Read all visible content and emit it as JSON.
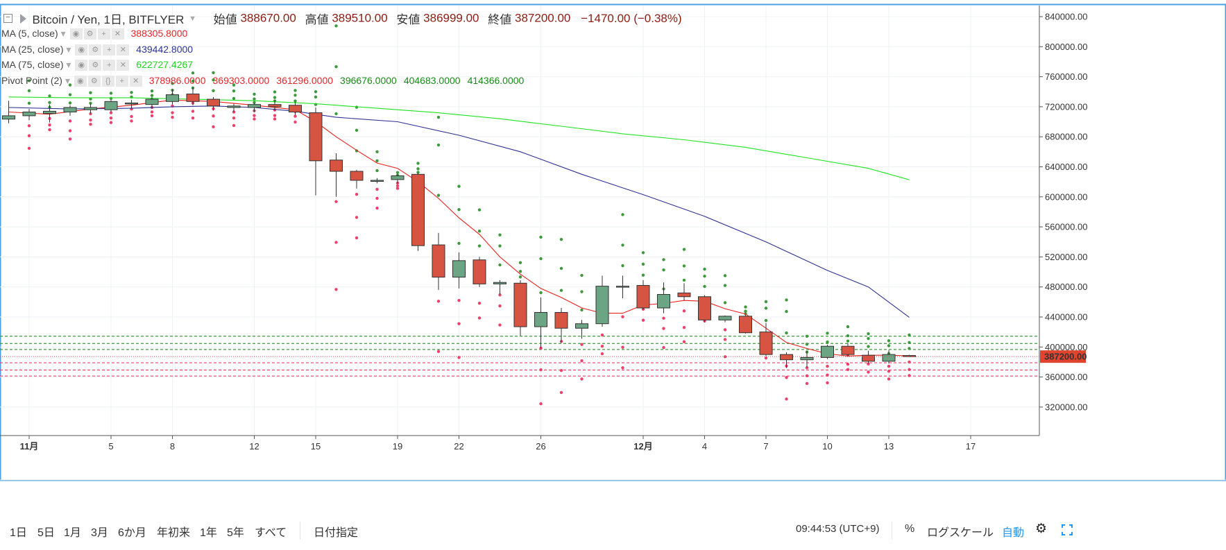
{
  "header": {
    "symbol": "Bitcoin / Yen, 1日, BITFLYER",
    "open_label": "始値",
    "open": "388670.00",
    "high_label": "高値",
    "high": "389510.00",
    "low_label": "安値",
    "low": "386999.00",
    "close_label": "終値",
    "close": "387200.00",
    "change": "−1470.00 (−0.38%)"
  },
  "indicators": [
    {
      "name": "MA (5, close)",
      "values": [
        "388305.8000"
      ],
      "colors": [
        "#e0262b"
      ]
    },
    {
      "name": "MA (25, close)",
      "values": [
        "439442.8000"
      ],
      "colors": [
        "#2d3498"
      ]
    },
    {
      "name": "MA (75, close)",
      "values": [
        "622727.4267"
      ],
      "colors": [
        "#21d521"
      ]
    },
    {
      "name": "Pivot Point (2)",
      "values": [
        "378986.0000",
        "369303.0000",
        "361296.0000",
        "396676.0000",
        "404683.0000",
        "414366.0000"
      ],
      "colors": [
        "#e0262b",
        "#e0262b",
        "#e0262b",
        "#178a17",
        "#178a17",
        "#178a17"
      ]
    }
  ],
  "toolbar": {
    "ranges": [
      "1日",
      "5日",
      "1月",
      "3月",
      "6か月",
      "年初来",
      "1年",
      "5年",
      "すべて"
    ],
    "date_goto": "日付指定",
    "clock": "09:44:53 (UTC+9)",
    "percent": "%",
    "log_scale": "ログスケール",
    "auto": "自動"
  },
  "colors": {
    "up": "#6ba583",
    "down": "#d75442",
    "ma5": "#e8201a",
    "ma25": "#2e3192",
    "ma75": "#1ee31e",
    "pivot_support": "#ef3f6b",
    "pivot_resistance": "#3c9a3c",
    "last_price_bg": "#e0442f"
  },
  "chart_data": {
    "type": "candlestick",
    "y_axis": {
      "ticks": [
        "840000.00",
        "800000.00",
        "760000.00",
        "720000.00",
        "680000.00",
        "640000.00",
        "600000.00",
        "560000.00",
        "520000.00",
        "480000.00",
        "440000.00",
        "400000.00",
        "360000.00",
        "320000.00"
      ],
      "last_price_label": "387200.00",
      "side": "right"
    },
    "x_axis": {
      "tick_labels": [
        {
          "label": "11月",
          "day": 1
        },
        {
          "label": "5",
          "day": 5
        },
        {
          "label": "8",
          "day": 8
        },
        {
          "label": "12",
          "day": 12
        },
        {
          "label": "15",
          "day": 15
        },
        {
          "label": "19",
          "day": 19
        },
        {
          "label": "22",
          "day": 22
        },
        {
          "label": "26",
          "day": 26
        },
        {
          "label": "12月",
          "day": 31
        },
        {
          "label": "4",
          "day": 34
        },
        {
          "label": "7",
          "day": 37
        },
        {
          "label": "10",
          "day": 40
        },
        {
          "label": "13",
          "day": 43
        },
        {
          "label": "17",
          "day": 47
        }
      ]
    },
    "candles": [
      {
        "day": 0,
        "o": 703500,
        "h": 728000,
        "l": 698000,
        "c": 708000
      },
      {
        "day": 1,
        "o": 708000,
        "h": 717000,
        "l": 702000,
        "c": 713000
      },
      {
        "day": 2,
        "o": 711000,
        "h": 723000,
        "l": 699000,
        "c": 714000
      },
      {
        "day": 3,
        "o": 713000,
        "h": 722000,
        "l": 708000,
        "c": 719000
      },
      {
        "day": 4,
        "o": 716000,
        "h": 724000,
        "l": 711000,
        "c": 719000
      },
      {
        "day": 5,
        "o": 716000,
        "h": 729000,
        "l": 713000,
        "c": 727000
      },
      {
        "day": 6,
        "o": 724000,
        "h": 729000,
        "l": 718000,
        "c": 725000
      },
      {
        "day": 7,
        "o": 723000,
        "h": 733000,
        "l": 718000,
        "c": 730000
      },
      {
        "day": 8,
        "o": 727000,
        "h": 743000,
        "l": 723000,
        "c": 736000
      },
      {
        "day": 9,
        "o": 737000,
        "h": 746000,
        "l": 722000,
        "c": 727000
      },
      {
        "day": 10,
        "o": 730000,
        "h": 733000,
        "l": 715000,
        "c": 721000
      },
      {
        "day": 11,
        "o": 719000,
        "h": 724000,
        "l": 713000,
        "c": 721000
      },
      {
        "day": 12,
        "o": 719000,
        "h": 725000,
        "l": 713000,
        "c": 723000
      },
      {
        "day": 13,
        "o": 723000,
        "h": 729000,
        "l": 715000,
        "c": 720000
      },
      {
        "day": 14,
        "o": 722000,
        "h": 726000,
        "l": 709000,
        "c": 713000
      },
      {
        "day": 15,
        "o": 712000,
        "h": 719000,
        "l": 602000,
        "c": 648000
      },
      {
        "day": 16,
        "o": 649000,
        "h": 658000,
        "l": 600000,
        "c": 634000
      },
      {
        "day": 17,
        "o": 634000,
        "h": 636000,
        "l": 611000,
        "c": 622000
      },
      {
        "day": 18,
        "o": 622000,
        "h": 625000,
        "l": 618000,
        "c": 622000
      },
      {
        "day": 19,
        "o": 623000,
        "h": 630000,
        "l": 618000,
        "c": 628000
      },
      {
        "day": 20,
        "o": 630000,
        "h": 632000,
        "l": 528000,
        "c": 535000
      },
      {
        "day": 21,
        "o": 536000,
        "h": 552000,
        "l": 476000,
        "c": 493000
      },
      {
        "day": 22,
        "o": 493000,
        "h": 526000,
        "l": 478000,
        "c": 515000
      },
      {
        "day": 23,
        "o": 516000,
        "h": 520000,
        "l": 480000,
        "c": 484000
      },
      {
        "day": 24,
        "o": 484000,
        "h": 489000,
        "l": 470000,
        "c": 486000
      },
      {
        "day": 25,
        "o": 485000,
        "h": 489000,
        "l": 415000,
        "c": 427000
      },
      {
        "day": 26,
        "o": 427000,
        "h": 466000,
        "l": 398000,
        "c": 446000
      },
      {
        "day": 27,
        "o": 446000,
        "h": 452000,
        "l": 406000,
        "c": 425000
      },
      {
        "day": 28,
        "o": 425000,
        "h": 436000,
        "l": 411000,
        "c": 431000
      },
      {
        "day": 29,
        "o": 431000,
        "h": 495000,
        "l": 427000,
        "c": 481000
      },
      {
        "day": 30,
        "o": 481000,
        "h": 495000,
        "l": 465000,
        "c": 481000
      },
      {
        "day": 31,
        "o": 482000,
        "h": 489000,
        "l": 450000,
        "c": 452000
      },
      {
        "day": 32,
        "o": 452000,
        "h": 486000,
        "l": 445000,
        "c": 470000
      },
      {
        "day": 33,
        "o": 472000,
        "h": 485000,
        "l": 462000,
        "c": 467000
      },
      {
        "day": 34,
        "o": 467000,
        "h": 469000,
        "l": 433000,
        "c": 436000
      },
      {
        "day": 35,
        "o": 436000,
        "h": 442000,
        "l": 433000,
        "c": 441000
      },
      {
        "day": 36,
        "o": 441000,
        "h": 443000,
        "l": 418000,
        "c": 419000
      },
      {
        "day": 37,
        "o": 420000,
        "h": 432000,
        "l": 388000,
        "c": 390000
      },
      {
        "day": 38,
        "o": 390000,
        "h": 393000,
        "l": 372000,
        "c": 383000
      },
      {
        "day": 39,
        "o": 383000,
        "h": 395000,
        "l": 373000,
        "c": 386000
      },
      {
        "day": 40,
        "o": 386000,
        "h": 403000,
        "l": 384000,
        "c": 401000
      },
      {
        "day": 41,
        "o": 401000,
        "h": 405000,
        "l": 388000,
        "c": 390000
      },
      {
        "day": 42,
        "o": 389000,
        "h": 395000,
        "l": 378000,
        "c": 381000
      },
      {
        "day": 43,
        "o": 381000,
        "h": 396000,
        "l": 378000,
        "c": 390000
      },
      {
        "day": 44,
        "o": 388670,
        "h": 389510,
        "l": 386999,
        "c": 387200
      }
    ],
    "series": [
      {
        "name": "MA (5, close)",
        "points": [
          [
            0,
            713000
          ],
          [
            2,
            710000
          ],
          [
            4,
            717000
          ],
          [
            6,
            722000
          ],
          [
            8,
            729000
          ],
          [
            10,
            727000
          ],
          [
            12,
            722000
          ],
          [
            14,
            716000
          ],
          [
            15,
            700000
          ],
          [
            16,
            680000
          ],
          [
            17,
            662000
          ],
          [
            18,
            645000
          ],
          [
            19,
            638000
          ],
          [
            20,
            620000
          ],
          [
            21,
            598000
          ],
          [
            22,
            572000
          ],
          [
            23,
            550000
          ],
          [
            24,
            520000
          ],
          [
            25,
            497000
          ],
          [
            26,
            478000
          ],
          [
            27,
            466000
          ],
          [
            28,
            452000
          ],
          [
            29,
            445000
          ],
          [
            30,
            445000
          ],
          [
            31,
            456000
          ],
          [
            32,
            458000
          ],
          [
            33,
            462000
          ],
          [
            34,
            461000
          ],
          [
            35,
            451000
          ],
          [
            36,
            444000
          ],
          [
            37,
            425000
          ],
          [
            38,
            406000
          ],
          [
            39,
            398000
          ],
          [
            40,
            391000
          ],
          [
            41,
            388000
          ],
          [
            42,
            389000
          ],
          [
            43,
            389000
          ],
          [
            44,
            388306
          ]
        ]
      },
      {
        "name": "MA (25, close)",
        "points": [
          [
            0,
            719000
          ],
          [
            3,
            717000
          ],
          [
            6,
            718000
          ],
          [
            8,
            720000
          ],
          [
            10,
            721000
          ],
          [
            12,
            719000
          ],
          [
            14,
            714000
          ],
          [
            16,
            706000
          ],
          [
            19,
            700000
          ],
          [
            22,
            682000
          ],
          [
            25,
            660000
          ],
          [
            28,
            630000
          ],
          [
            31,
            603000
          ],
          [
            34,
            574000
          ],
          [
            37,
            540000
          ],
          [
            40,
            502000
          ],
          [
            42,
            480000
          ],
          [
            44,
            439443
          ]
        ]
      },
      {
        "name": "MA (75, close)",
        "points": [
          [
            0,
            733000
          ],
          [
            3,
            732000
          ],
          [
            6,
            732000
          ],
          [
            9,
            730000
          ],
          [
            12,
            728000
          ],
          [
            15,
            724000
          ],
          [
            18,
            718000
          ],
          [
            21,
            712000
          ],
          [
            24,
            704000
          ],
          [
            27,
            694000
          ],
          [
            30,
            684000
          ],
          [
            33,
            676000
          ],
          [
            36,
            666000
          ],
          [
            39,
            652000
          ],
          [
            42,
            638000
          ],
          [
            44,
            622727
          ]
        ]
      }
    ],
    "pivot_levels": [
      {
        "kind": "support",
        "values": [
          378986,
          369303,
          361296
        ]
      },
      {
        "kind": "resistance",
        "values": [
          396676,
          404683,
          414366
        ]
      }
    ]
  }
}
